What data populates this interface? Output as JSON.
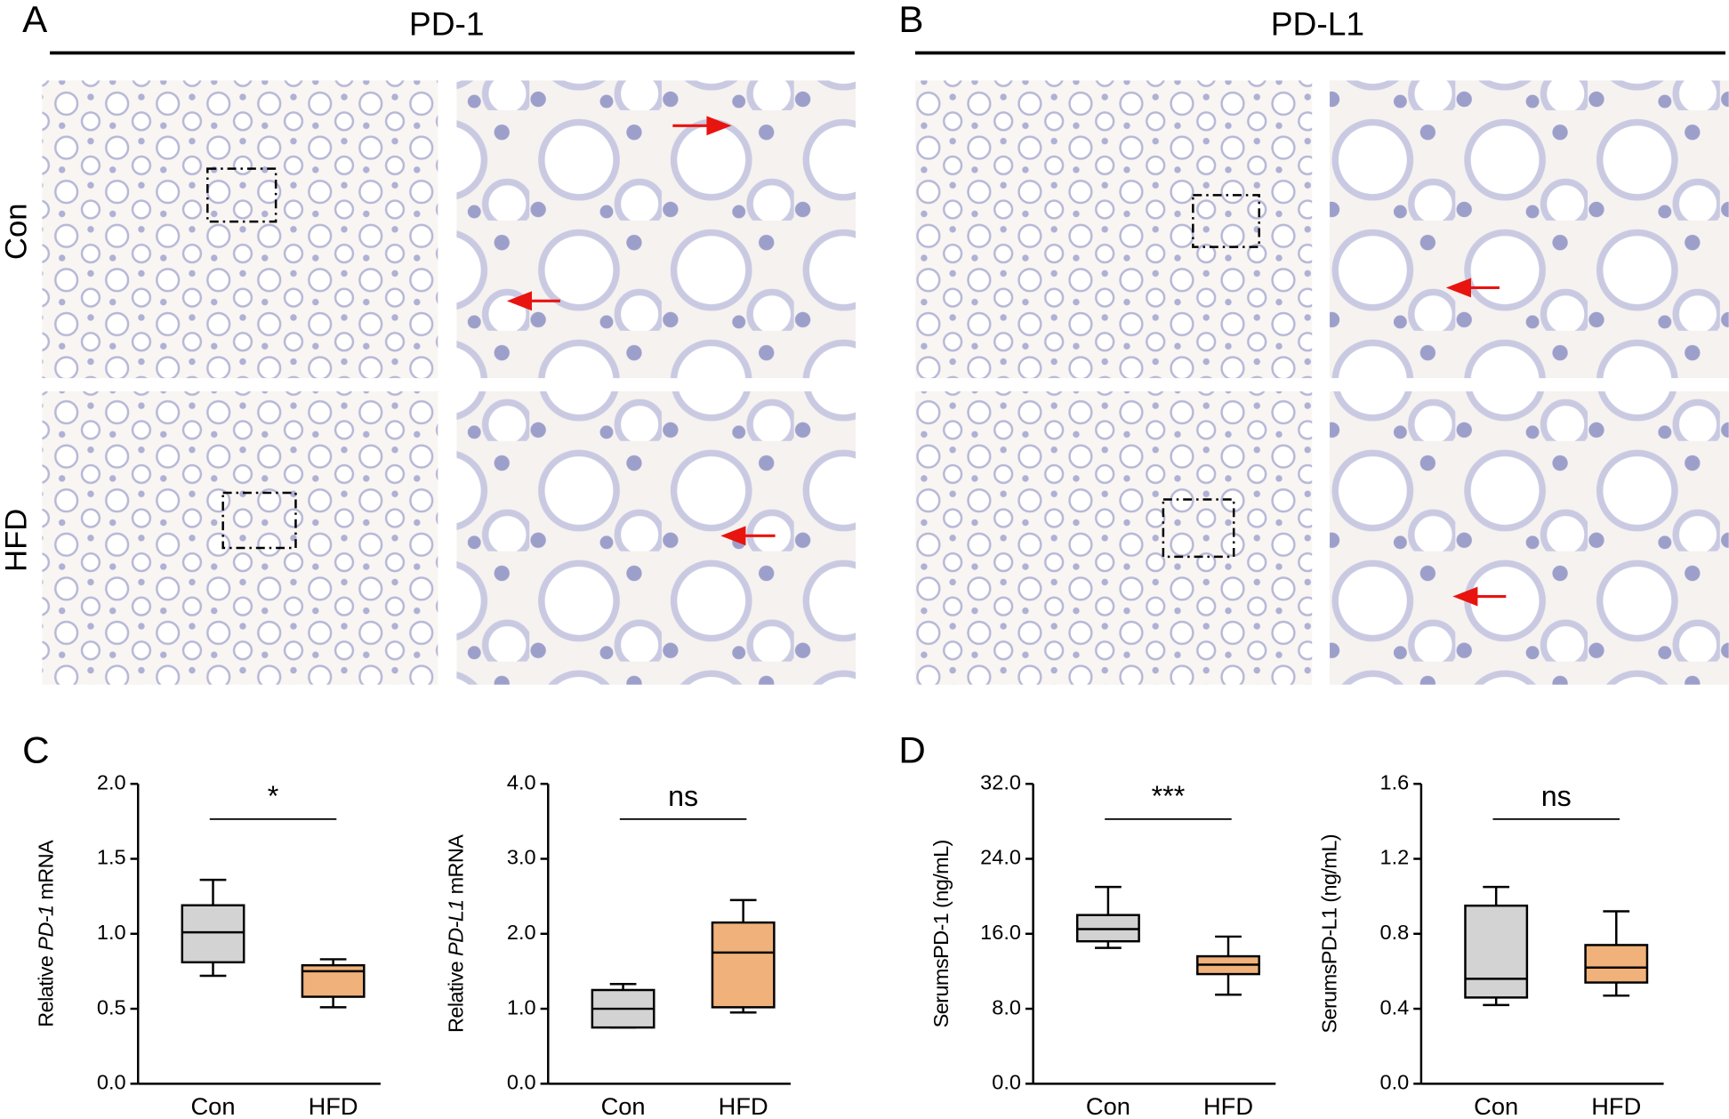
{
  "figure": {
    "panel_labels": [
      "A",
      "B",
      "C",
      "D"
    ],
    "headers": [
      "PD-1",
      "PD-L1"
    ],
    "row_labels": [
      "Con",
      "HFD"
    ]
  },
  "chart_data": [
    {
      "type": "box",
      "ylabel_parts": [
        "Relative ",
        "PD-1",
        " mRNA"
      ],
      "categories": [
        "Con",
        "HFD"
      ],
      "boxes": [
        {
          "min": 0.72,
          "q1": 0.81,
          "median": 1.01,
          "q3": 1.19,
          "max": 1.36,
          "color": "#d3d3d3"
        },
        {
          "min": 0.51,
          "q1": 0.58,
          "median": 0.75,
          "q3": 0.79,
          "max": 0.83,
          "color": "#f0b27a"
        }
      ],
      "ylim": [
        0,
        2
      ],
      "yticks": [
        {
          "value": 0,
          "label": "0.0"
        },
        0.5,
        {
          "value": 1,
          "label": "1.0"
        },
        1.5,
        {
          "value": 2,
          "label": "2.0"
        }
      ],
      "significance": "*"
    },
    {
      "type": "box",
      "ylabel_parts": [
        "Relative ",
        "PD-L1",
        " mRNA"
      ],
      "categories": [
        "Con",
        "HFD"
      ],
      "boxes": [
        {
          "min": 0.75,
          "q1": 0.75,
          "median": 1.0,
          "q3": 1.25,
          "max": 1.33,
          "color": "#d3d3d3"
        },
        {
          "min": 0.95,
          "q1": 1.02,
          "median": 1.75,
          "q3": 2.15,
          "max": 2.45,
          "color": "#f0b27a"
        }
      ],
      "ylim": [
        0,
        4
      ],
      "yticks": [
        {
          "value": 0,
          "label": "0.0"
        },
        {
          "value": 1,
          "label": "1.0"
        },
        {
          "value": 2,
          "label": "2.0"
        },
        {
          "value": 3,
          "label": "3.0"
        },
        {
          "value": 4,
          "label": "4.0"
        }
      ],
      "significance": "ns"
    },
    {
      "type": "box",
      "ylabel_parts": [
        "SerumsPD-1 (ng/mL)"
      ],
      "categories": [
        "Con",
        "HFD"
      ],
      "boxes": [
        {
          "min": 14.5,
          "q1": 15.2,
          "median": 16.5,
          "q3": 18.0,
          "max": 21.0,
          "color": "#d3d3d3"
        },
        {
          "min": 9.5,
          "q1": 11.7,
          "median": 12.7,
          "q3": 13.6,
          "max": 15.7,
          "color": "#f0b27a"
        }
      ],
      "ylim": [
        0,
        32
      ],
      "yticks": [
        {
          "value": 0,
          "label": "0.0"
        },
        {
          "value": 8,
          "label": "8.0"
        },
        {
          "value": 16,
          "label": "16.0"
        },
        {
          "value": 24,
          "label": "24.0"
        },
        {
          "value": 32,
          "label": "32.0"
        }
      ],
      "significance": "***"
    },
    {
      "type": "box",
      "ylabel_parts": [
        "SerumsPD-L1 (ng/mL)"
      ],
      "categories": [
        "Con",
        "HFD"
      ],
      "boxes": [
        {
          "min": 0.42,
          "q1": 0.46,
          "median": 0.56,
          "q3": 0.95,
          "max": 1.05,
          "color": "#d3d3d3"
        },
        {
          "min": 0.47,
          "q1": 0.54,
          "median": 0.62,
          "q3": 0.74,
          "max": 0.92,
          "color": "#f0b27a"
        }
      ],
      "ylim": [
        0,
        1.6
      ],
      "yticks": [
        {
          "value": 0,
          "label": "0.0"
        },
        0.4,
        0.8,
        1.2,
        1.6
      ],
      "significance": "ns"
    }
  ]
}
